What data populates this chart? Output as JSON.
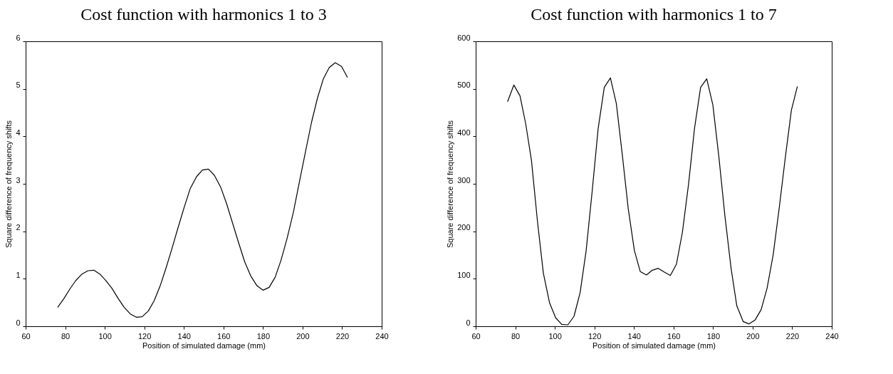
{
  "chart_data": [
    {
      "type": "line",
      "title": "Cost function with harmonics 1 to 3",
      "xlabel": "Position of simulated damage (mm)",
      "ylabel": "Square difference of frequency shifts",
      "color": "#000000",
      "x": [
        76.2,
        79.3,
        82.3,
        85.3,
        88.5,
        91.5,
        94.5,
        97.5,
        100.4,
        103.6,
        106.7,
        109.8,
        112.9,
        116,
        118.9,
        122,
        125,
        128,
        131,
        134,
        137,
        140.2,
        143.2,
        146.4,
        149.4,
        152.4,
        155.4,
        158.6,
        161.6,
        164.7,
        167.8,
        170.8,
        173.8,
        177,
        180,
        183.1,
        186.1,
        189.1,
        192.1,
        195.3,
        198.4,
        201.5,
        204.5,
        207.5,
        210.5,
        213.5,
        216.5,
        219.7,
        222.7
      ],
      "values": [
        0.4,
        0.58,
        0.78,
        0.96,
        1.1,
        1.17,
        1.18,
        1.1,
        0.97,
        0.8,
        0.59,
        0.4,
        0.26,
        0.19,
        0.2,
        0.32,
        0.54,
        0.85,
        1.23,
        1.64,
        2.07,
        2.51,
        2.9,
        3.15,
        3.29,
        3.31,
        3.18,
        2.93,
        2.58,
        2.16,
        1.74,
        1.35,
        1.06,
        0.85,
        0.76,
        0.82,
        1.03,
        1.39,
        1.84,
        2.39,
        3.04,
        3.68,
        4.29,
        4.8,
        5.21,
        5.45,
        5.55,
        5.47,
        5.24
      ],
      "xlim": [
        60,
        240
      ],
      "xticks": [
        60,
        80,
        100,
        120,
        140,
        160,
        180,
        200,
        220,
        240
      ],
      "ylim": [
        0,
        6
      ],
      "yticks": [
        0,
        1,
        2,
        3,
        4,
        5,
        6
      ]
    },
    {
      "type": "line",
      "title": "Cost function with harmonics 1 to 7",
      "xlabel": "Position of simulated damage (mm)",
      "ylabel": "Square difference of frequency shifts",
      "color": "#000000",
      "x": [
        76.1,
        79.3,
        82.4,
        85.3,
        88.2,
        91.2,
        94.2,
        97.3,
        100.4,
        103.5,
        106.6,
        109.7,
        112.8,
        115.8,
        118.9,
        121.9,
        125,
        128.1,
        131.1,
        134.2,
        137.1,
        140.2,
        143.2,
        146.3,
        149.3,
        152.3,
        155.4,
        158.4,
        161.5,
        164.5,
        167.6,
        170.6,
        173.7,
        176.8,
        179.9,
        182.9,
        186,
        189.1,
        192,
        195.2,
        198.1,
        201.2,
        204.3,
        207.3,
        210.4,
        213.5,
        216.6,
        219.6,
        222.6
      ],
      "values": [
        473,
        508,
        485,
        426,
        349,
        222,
        112,
        50,
        18,
        4,
        3,
        21,
        71,
        158,
        285,
        416,
        503,
        523,
        469,
        358,
        248,
        160,
        115,
        108,
        118,
        122,
        114,
        107,
        131,
        198,
        299,
        416,
        503,
        521,
        466,
        358,
        232,
        122,
        43,
        10,
        5,
        13,
        35,
        80,
        151,
        251,
        358,
        455,
        505
      ],
      "xlim": [
        60,
        240
      ],
      "xticks": [
        60,
        80,
        100,
        120,
        140,
        160,
        180,
        200,
        220,
        240
      ],
      "ylim": [
        0,
        600
      ],
      "yticks": [
        0,
        100,
        200,
        300,
        400,
        500,
        600
      ]
    }
  ]
}
